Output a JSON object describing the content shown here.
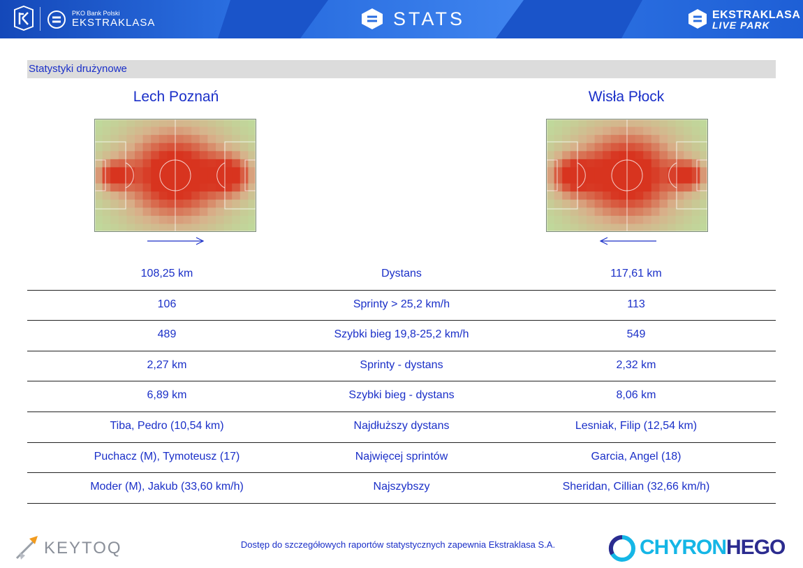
{
  "header": {
    "pko_small": "PKO Bank Polski",
    "league": "EKSTRAKLASA",
    "stats_title": "STATS",
    "live_park_line1": "EKSTRAKLASA",
    "live_park_line2": "LIVE PARK",
    "icons": [
      "pko-bp-logo",
      "ekstraklasa-logo",
      "stats-logo",
      "live-park-logo"
    ]
  },
  "section": {
    "title": "Statystyki drużynowe"
  },
  "teams": {
    "home": {
      "name": "Lech Poznań",
      "attack_direction": "right"
    },
    "away": {
      "name": "Wisła Płock",
      "attack_direction": "left"
    }
  },
  "stats": [
    {
      "label": "Dystans",
      "home": "108,25 km",
      "away": "117,61 km"
    },
    {
      "label": "Sprinty > 25,2 km/h",
      "home": "106",
      "away": "113"
    },
    {
      "label": "Szybki bieg 19,8-25,2 km/h",
      "home": "489",
      "away": "549"
    },
    {
      "label": "Sprinty - dystans",
      "home": "2,27 km",
      "away": "2,32 km"
    },
    {
      "label": "Szybki bieg - dystans",
      "home": "6,89 km",
      "away": "8,06 km"
    },
    {
      "label": "Najdłuższy dystans",
      "home": "Tiba, Pedro (10,54 km)",
      "away": "Lesniak, Filip (12,54 km)"
    },
    {
      "label": "Najwięcej sprintów",
      "home": "Puchacz (M), Tymoteusz (17)",
      "away": "Garcia, Angel (18)"
    },
    {
      "label": "Najszybszy",
      "home": "Moder (M), Jakub (33,60 km/h)",
      "away": "Sheridan, Cillian (32,66 km/h)"
    }
  ],
  "footer": {
    "keytoq": "KEYTOQ",
    "note": "Dostęp do szczegółowych raportów statystycznych zapewnia Ekstraklasa S.A.",
    "chyron_a": "CHYRON",
    "chyron_b": "HEGO"
  },
  "colors": {
    "header_blue": "#1a54c9",
    "text_blue": "#1a2fc8",
    "heat_low": "#b7e6a1",
    "heat_mid": "#d8b08a",
    "heat_high": "#d8341f"
  }
}
